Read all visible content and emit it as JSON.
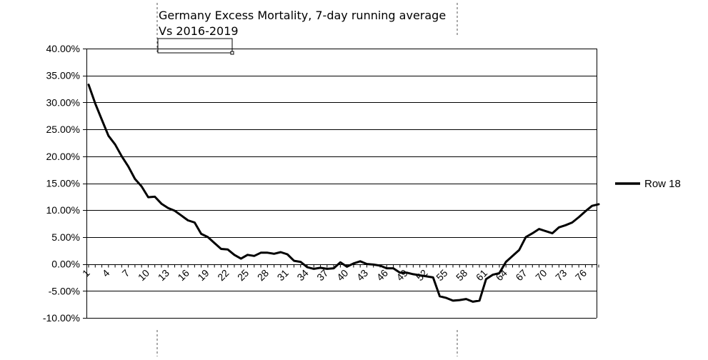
{
  "chart_data": {
    "type": "line",
    "title_line1": "Germany Excess Mortality, 7-day running average",
    "title_line2": "Vs 2016-2019",
    "ylim": [
      -0.1,
      0.4
    ],
    "y_ticks": [
      0.4,
      0.35,
      0.3,
      0.25,
      0.2,
      0.15,
      0.1,
      0.05,
      0.0,
      -0.05,
      -0.1
    ],
    "y_tick_labels": [
      "40.00%",
      "35.00%",
      "30.00%",
      "25.00%",
      "20.00%",
      "15.00%",
      "10.00%",
      "5.00%",
      "0.00%",
      "-5.00%",
      "-10.00%"
    ],
    "x_range": [
      1,
      78
    ],
    "x_tick_labels": [
      "1",
      "4",
      "7",
      "10",
      "13",
      "16",
      "19",
      "22",
      "25",
      "28",
      "31",
      "34",
      "37",
      "40",
      "43",
      "46",
      "49",
      "52",
      "55",
      "58",
      "61",
      "64",
      "67",
      "70",
      "73",
      "76"
    ],
    "legend_position": "right",
    "grid": "horizontal",
    "color": "#000000",
    "series": [
      {
        "name": "Row 18",
        "x": [
          1,
          2,
          3,
          4,
          5,
          6,
          7,
          8,
          9,
          10,
          11,
          12,
          13,
          14,
          15,
          16,
          17,
          18,
          19,
          20,
          21,
          22,
          23,
          24,
          25,
          26,
          27,
          28,
          29,
          30,
          31,
          32,
          33,
          34,
          35,
          36,
          37,
          38,
          39,
          40,
          41,
          42,
          43,
          44,
          45,
          46,
          47,
          48,
          49,
          50,
          51,
          52,
          53,
          54,
          55,
          56,
          57,
          58,
          59,
          60,
          61,
          62,
          63,
          64,
          65,
          66,
          67,
          68,
          69,
          70,
          71,
          72,
          73,
          74,
          75,
          76,
          77,
          78
        ],
        "values": [
          0.333,
          0.298,
          0.268,
          0.238,
          0.222,
          0.2,
          0.181,
          0.158,
          0.144,
          0.124,
          0.125,
          0.112,
          0.104,
          0.099,
          0.09,
          0.081,
          0.077,
          0.056,
          0.05,
          0.039,
          0.028,
          0.027,
          0.017,
          0.01,
          0.017,
          0.015,
          0.021,
          0.021,
          0.019,
          0.022,
          0.018,
          0.006,
          0.004,
          -0.006,
          -0.009,
          -0.007,
          -0.009,
          -0.008,
          0.003,
          -0.005,
          0.001,
          0.005,
          0.0,
          -0.001,
          -0.003,
          -0.008,
          -0.008,
          -0.016,
          -0.016,
          -0.019,
          -0.021,
          -0.023,
          -0.025,
          -0.06,
          -0.063,
          -0.068,
          -0.067,
          -0.065,
          -0.07,
          -0.068,
          -0.028,
          -0.02,
          -0.017,
          0.004,
          0.015,
          0.026,
          0.05,
          0.057,
          0.065,
          0.061,
          0.057,
          0.068,
          0.072,
          0.077,
          0.087,
          0.098,
          0.108,
          0.111
        ]
      }
    ]
  }
}
